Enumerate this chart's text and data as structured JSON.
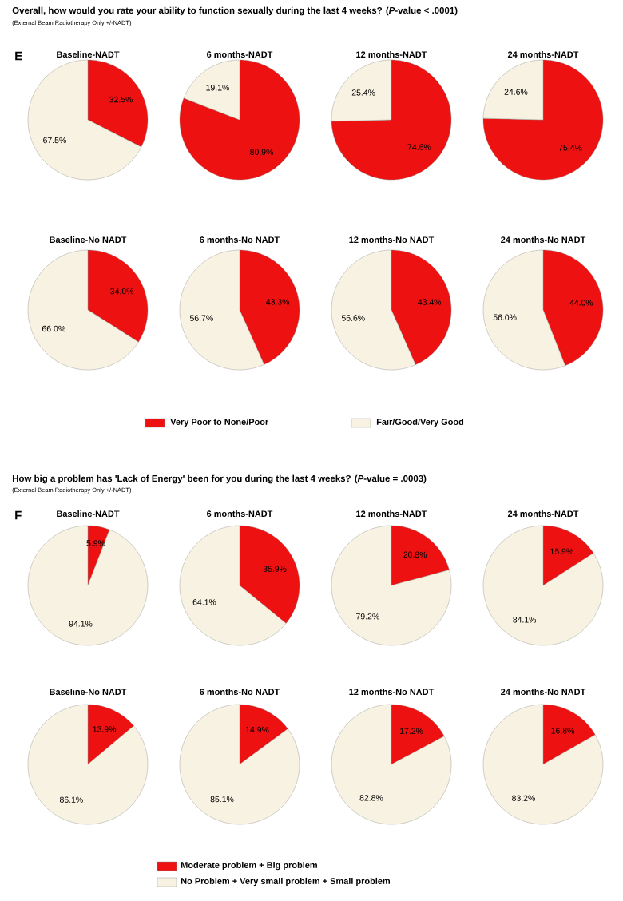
{
  "chart_data": [
    {
      "type": "pie",
      "title": "Baseline-NADT",
      "annotations": [
        "Overall, how would you rate your ability to function sexually during the last 4 weeks? (*P*-value < .0001)",
        "(External Beam Radiotherapy Only +/-NADT)",
        "E"
      ],
      "categories": [
        null,
        null
      ],
      "values": [
        32.5,
        67.5
      ],
      "value_labels": [
        "32.5%",
        "67.5%"
      ],
      "colors": [
        "#ee1111",
        "#f7f2e1"
      ],
      "legend": false
    },
    {
      "type": "pie",
      "title": "6 months-NADT",
      "categories": [
        null,
        null
      ],
      "values": [
        80.9,
        19.1
      ],
      "value_labels": [
        "80.9%",
        "19.1%"
      ],
      "colors": [
        "#ee1111",
        "#f7f2e1"
      ],
      "legend": false
    },
    {
      "type": "pie",
      "title": "12 months-NADT",
      "categories": [
        null,
        null
      ],
      "values": [
        74.6,
        25.4
      ],
      "value_labels": [
        "74.6%",
        "25.4%"
      ],
      "colors": [
        "#ee1111",
        "#f7f2e1"
      ],
      "legend": false
    },
    {
      "type": "pie",
      "title": "24 months-NADT",
      "categories": [
        null,
        null
      ],
      "values": [
        75.4,
        24.6
      ],
      "value_labels": [
        "75.4%",
        "24.6%"
      ],
      "colors": [
        "#ee1111",
        "#f7f2e1"
      ],
      "legend": false
    },
    {
      "type": "pie",
      "title": "Baseline-No NADT",
      "categories": [
        null,
        null
      ],
      "values": [
        34.0,
        66.0
      ],
      "value_labels": [
        "34.0%",
        "66.0%"
      ],
      "colors": [
        "#ee1111",
        "#f7f2e1"
      ],
      "legend": false
    },
    {
      "type": "pie",
      "title": "6 months-No NADT",
      "categories": [
        null,
        null
      ],
      "values": [
        43.3,
        56.7
      ],
      "value_labels": [
        "43.3%",
        "56.7%"
      ],
      "colors": [
        "#ee1111",
        "#f7f2e1"
      ],
      "legend": false
    },
    {
      "type": "pie",
      "title": "12 months-No NADT",
      "categories": [
        null,
        null
      ],
      "values": [
        43.4,
        56.6
      ],
      "value_labels": [
        "43.4%",
        "56.6%"
      ],
      "colors": [
        "#ee1111",
        "#f7f2e1"
      ],
      "legend": false
    },
    {
      "type": "pie",
      "title": "24 months-No NADT",
      "categories": [
        "Very Poor to None/Poor",
        "Fair/Good/Very Good"
      ],
      "values": [
        44.0,
        56.0
      ],
      "value_labels": [
        "44.0%",
        "56.0%"
      ],
      "colors": [
        "#ee1111",
        "#f7f2e1"
      ],
      "legend": "bottom"
    },
    {
      "type": "pie",
      "title": "Baseline-NADT",
      "annotations": [
        "How big a problem has 'Lack of Energy' been for you during the last 4 weeks? (*P*-value = .0003)",
        "(External Beam Radiotherapy Only +/-NADT)",
        "F"
      ],
      "categories": [
        null,
        null
      ],
      "values": [
        5.9,
        94.1
      ],
      "value_labels": [
        "5.9%",
        "94.1%"
      ],
      "colors": [
        "#ee1111",
        "#f7f2e1"
      ],
      "legend": false
    },
    {
      "type": "pie",
      "title": "6 months-NADT",
      "categories": [
        null,
        null
      ],
      "values": [
        35.9,
        64.1
      ],
      "value_labels": [
        "35.9%",
        "64.1%"
      ],
      "colors": [
        "#ee1111",
        "#f7f2e1"
      ],
      "legend": false
    },
    {
      "type": "pie",
      "title": "12 months-NADT",
      "categories": [
        null,
        null
      ],
      "values": [
        20.8,
        79.2
      ],
      "value_labels": [
        "20.8%",
        "79.2%"
      ],
      "colors": [
        "#ee1111",
        "#f7f2e1"
      ],
      "legend": false
    },
    {
      "type": "pie",
      "title": "24 months-NADT",
      "categories": [
        null,
        null
      ],
      "values": [
        15.9,
        84.1
      ],
      "value_labels": [
        "15.9%",
        "84.1%"
      ],
      "colors": [
        "#ee1111",
        "#f7f2e1"
      ],
      "legend": false
    },
    {
      "type": "pie",
      "title": "Baseline-No NADT",
      "categories": [
        null,
        null
      ],
      "values": [
        13.9,
        86.1
      ],
      "value_labels": [
        "13.9%",
        "86.1%"
      ],
      "colors": [
        "#ee1111",
        "#f7f2e1"
      ],
      "legend": false
    },
    {
      "type": "pie",
      "title": "6 months-No NADT",
      "categories": [
        null,
        null
      ],
      "values": [
        14.9,
        85.1
      ],
      "value_labels": [
        "14.9%",
        "85.1%"
      ],
      "colors": [
        "#ee1111",
        "#f7f2e1"
      ],
      "legend": false
    },
    {
      "type": "pie",
      "title": "12 months-No NADT",
      "categories": [
        null,
        null
      ],
      "values": [
        17.2,
        82.8
      ],
      "value_labels": [
        "17.2%",
        "82.8%"
      ],
      "colors": [
        "#ee1111",
        "#f7f2e1"
      ],
      "legend": false
    },
    {
      "type": "pie",
      "title": "24 months-No NADT",
      "categories": [
        "Moderate problem + Big problem",
        "No Problem + Very small problem + Small problem"
      ],
      "values": [
        16.8,
        83.2
      ],
      "value_labels": [
        "16.8%",
        "83.2%"
      ],
      "colors": [
        "#ee1111",
        "#f7f2e1"
      ],
      "legend": "bottom"
    }
  ]
}
